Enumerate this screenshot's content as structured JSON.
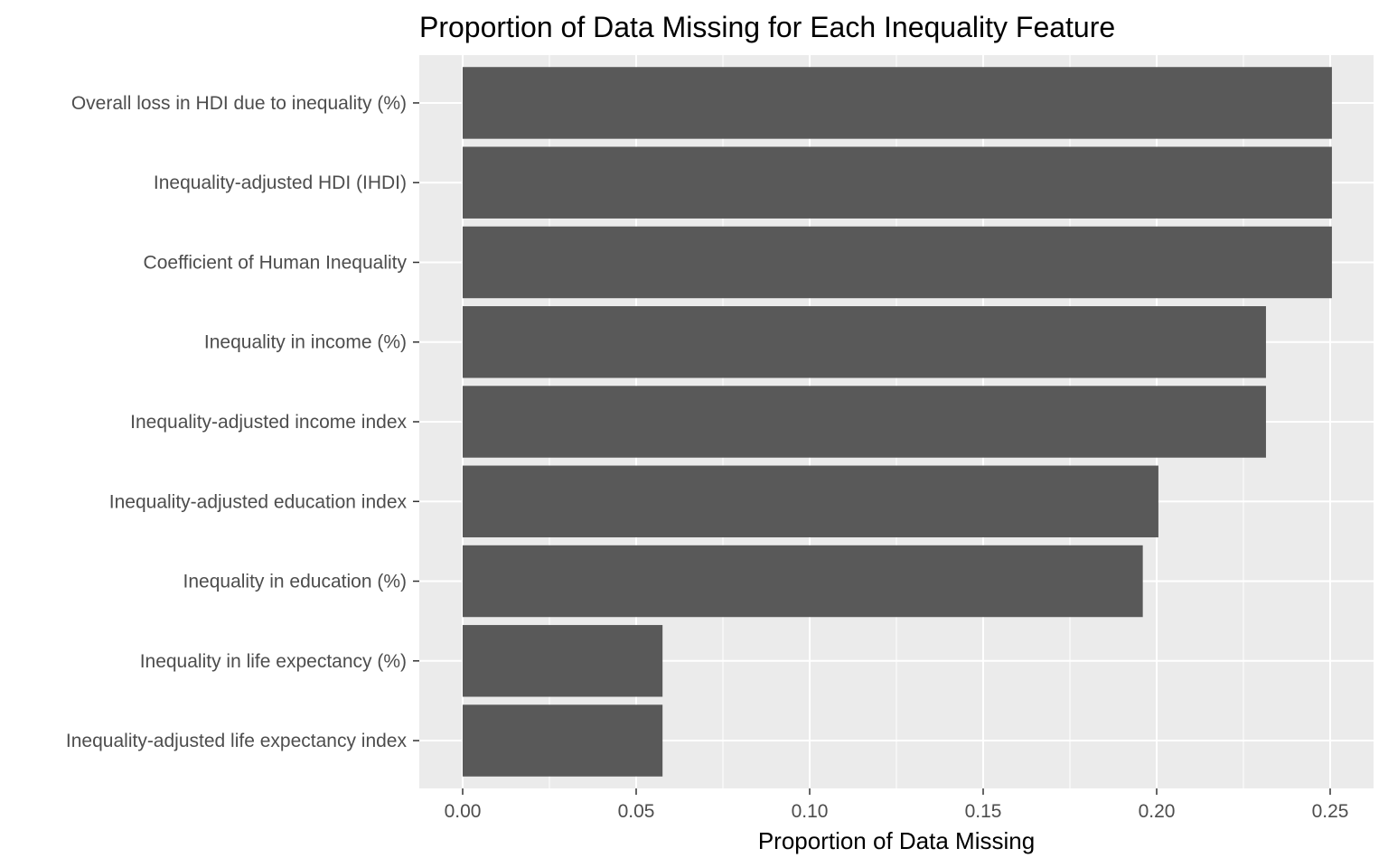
{
  "chart_data": {
    "type": "bar",
    "orientation": "horizontal",
    "title": "Proportion of Data Missing for Each Inequality Feature",
    "xlabel": "Proportion of Data Missing",
    "ylabel": "",
    "xlim": [
      -0.0125,
      0.2625
    ],
    "x_ticks": [
      0.0,
      0.05,
      0.1,
      0.15,
      0.2,
      0.25
    ],
    "x_tick_labels": [
      "0.00",
      "0.05",
      "0.10",
      "0.15",
      "0.20",
      "0.25"
    ],
    "categories": [
      "Overall loss in HDI due to inequality (%)",
      "Inequality-adjusted HDI (IHDI)",
      "Coefficient of Human Inequality",
      "Inequality in income (%)",
      "Inequality-adjusted income index",
      "Inequality-adjusted education index",
      "Inequality in education (%)",
      "Inequality in life expectancy (%)",
      "Inequality-adjusted life expectancy index"
    ],
    "values": [
      0.2505,
      0.2505,
      0.2505,
      0.2315,
      0.2315,
      0.2005,
      0.196,
      0.0576,
      0.0576
    ],
    "grid": true,
    "legend": "none",
    "colors": {
      "bar": "#595959",
      "panel": "#ebebeb",
      "grid": "#ffffff",
      "tick_label": "#4d4d4d",
      "tick": "#333333"
    }
  }
}
